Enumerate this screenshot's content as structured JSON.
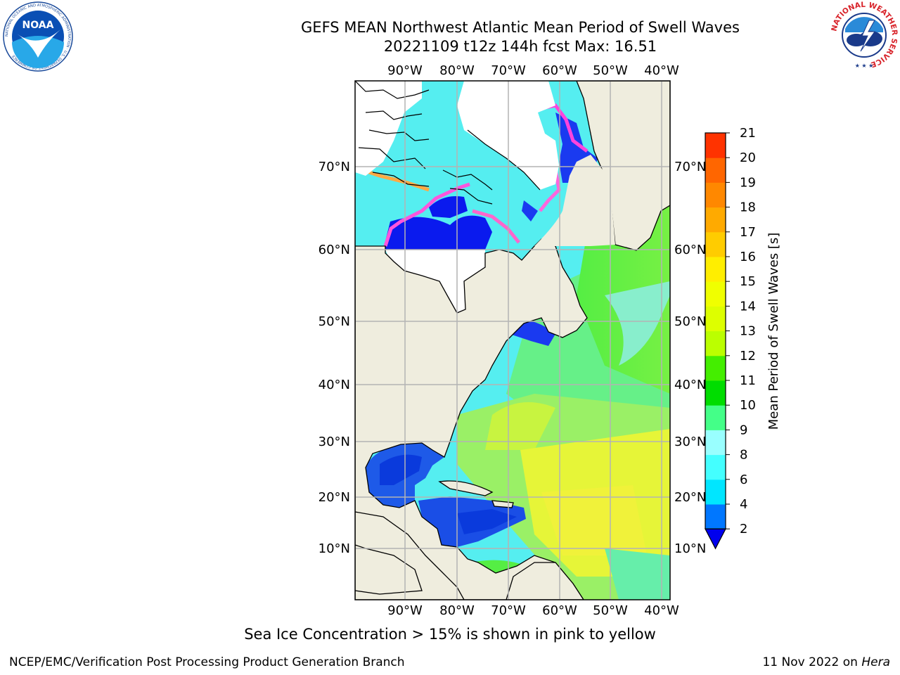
{
  "header": {
    "title_line1": "GEFS MEAN Northwest Atlantic Mean Period of Swell Waves",
    "title_line2": "20221109 t12z 144h fcst   Max: 16.51"
  },
  "map": {
    "lon_ticks": [
      "90°W",
      "80°W",
      "70°W",
      "60°W",
      "50°W",
      "40°W"
    ],
    "lat_ticks": [
      "70°N",
      "60°N",
      "50°N",
      "40°N",
      "30°N",
      "20°N",
      "10°N"
    ],
    "colors": {
      "land": "#efedde",
      "ice_white": "#ffffff",
      "grid": "#b3b3b3"
    }
  },
  "colorbar": {
    "label": "Mean Period of Swell Waves [s]",
    "ticks": [
      "2",
      "4",
      "6",
      "8",
      "9",
      "10",
      "11",
      "12",
      "13",
      "14",
      "15",
      "16",
      "17",
      "18",
      "19",
      "20",
      "21"
    ],
    "colors": [
      "#0077ff",
      "#00e6ff",
      "#44ffff",
      "#99ffff",
      "#44ff88",
      "#00dd00",
      "#44ee00",
      "#bbff00",
      "#ddff00",
      "#f0ff00",
      "#ffee00",
      "#ffcc00",
      "#ffaa00",
      "#ff8800",
      "#ff6600",
      "#ff3300"
    ],
    "under_color": "#0000ee"
  },
  "footer": {
    "note": "Sea Ice Concentration > 15% is shown in pink to yellow",
    "credit": "NCEP/EMC/Verification Post Processing Product Generation Branch",
    "date_prefix": "11 Nov 2022 on ",
    "date_host": "Hera"
  },
  "logos": {
    "noaa_text": "NOAA",
    "noaa_ring_text": "NATIONAL OCEANIC AND ATMOSPHERIC ADMINISTRATION · U.S. DEPARTMENT OF COMMERCE",
    "nws_ring_text": "NATIONAL WEATHER SERVICE"
  }
}
